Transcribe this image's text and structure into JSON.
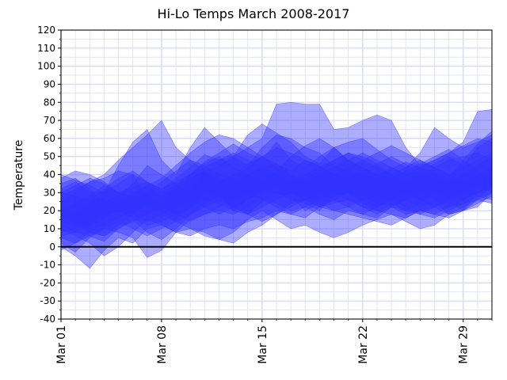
{
  "chart_data": {
    "type": "area",
    "title": "Hi-Lo Temps March 2008-2017",
    "xlabel": "",
    "ylabel": "Temperature",
    "xlim": [
      1,
      31
    ],
    "ylim": [
      -40,
      120
    ],
    "y_ticks": [
      -40,
      -30,
      -20,
      -10,
      0,
      10,
      20,
      30,
      40,
      50,
      60,
      70,
      80,
      90,
      100,
      110,
      120
    ],
    "x_ticks": [
      {
        "day": 1,
        "label": "Mar 01"
      },
      {
        "day": 8,
        "label": "Mar 08"
      },
      {
        "day": 15,
        "label": "Mar 15"
      },
      {
        "day": 22,
        "label": "Mar 22"
      },
      {
        "day": 29,
        "label": "Mar 29"
      }
    ],
    "grid": true,
    "zero_line": true,
    "colors": {
      "fill": "#3333ff",
      "grid": "#dcdcf5",
      "zero_line": "#000000"
    },
    "series": [
      {
        "high": [
          40,
          37,
          34,
          30,
          35,
          40,
          28,
          24,
          33,
          40,
          47,
          52,
          57,
          52,
          48,
          58,
          48,
          44,
          50,
          55,
          48,
          44,
          40,
          43,
          47,
          44,
          41,
          38,
          48,
          57,
          64
        ],
        "low": [
          12,
          8,
          6,
          3,
          10,
          15,
          8,
          4,
          10,
          18,
          24,
          28,
          22,
          18,
          25,
          30,
          28,
          20,
          24,
          28,
          30,
          24,
          20,
          23,
          26,
          22,
          25,
          18,
          20,
          26,
          34
        ]
      },
      {
        "high": [
          30,
          34,
          38,
          35,
          30,
          33,
          36,
          32,
          38,
          44,
          51,
          48,
          50,
          45,
          55,
          62,
          60,
          55,
          52,
          45,
          42,
          40,
          38,
          44,
          40,
          42,
          46,
          50,
          45,
          55,
          60
        ],
        "low": [
          0,
          -5,
          -12,
          -2,
          5,
          2,
          10,
          12,
          8,
          15,
          18,
          20,
          18,
          22,
          26,
          24,
          20,
          22,
          18,
          15,
          20,
          18,
          16,
          22,
          18,
          20,
          22,
          25,
          20,
          30,
          32
        ]
      },
      {
        "high": [
          35,
          38,
          32,
          25,
          28,
          35,
          45,
          40,
          35,
          30,
          42,
          38,
          35,
          40,
          44,
          46,
          40,
          38,
          42,
          48,
          52,
          50,
          46,
          40,
          36,
          40,
          44,
          48,
          50,
          52,
          48
        ],
        "low": [
          10,
          6,
          2,
          -5,
          0,
          8,
          15,
          12,
          8,
          6,
          10,
          12,
          10,
          14,
          16,
          20,
          18,
          16,
          22,
          24,
          26,
          22,
          20,
          18,
          16,
          20,
          18,
          22,
          24,
          26,
          24
        ]
      },
      {
        "high": [
          22,
          18,
          24,
          30,
          45,
          58,
          65,
          48,
          40,
          55,
          66,
          58,
          50,
          62,
          68,
          63,
          58,
          50,
          46,
          55,
          58,
          60,
          54,
          48,
          44,
          52,
          66,
          60,
          55,
          58,
          62
        ],
        "low": [
          5,
          2,
          8,
          6,
          12,
          18,
          24,
          20,
          15,
          22,
          30,
          28,
          20,
          26,
          32,
          30,
          26,
          24,
          20,
          28,
          30,
          28,
          24,
          22,
          20,
          24,
          30,
          28,
          26,
          30,
          32
        ]
      },
      {
        "high": [
          25,
          30,
          36,
          40,
          48,
          55,
          62,
          70,
          55,
          48,
          42,
          45,
          50,
          55,
          60,
          79,
          80,
          79,
          79,
          65,
          66,
          70,
          73,
          70,
          55,
          45,
          48,
          52,
          58,
          75,
          76
        ],
        "low": [
          2,
          -3,
          5,
          10,
          8,
          5,
          -6,
          -2,
          8,
          10,
          6,
          4,
          8,
          15,
          20,
          15,
          10,
          12,
          8,
          5,
          8,
          12,
          15,
          18,
          14,
          10,
          12,
          18,
          20,
          22,
          30
        ]
      },
      {
        "high": [
          38,
          42,
          40,
          36,
          30,
          28,
          34,
          38,
          45,
          52,
          58,
          62,
          60,
          55,
          50,
          46,
          42,
          48,
          45,
          40,
          38,
          42,
          46,
          50,
          46,
          40,
          38,
          36,
          40,
          45,
          50
        ],
        "low": [
          18,
          14,
          10,
          12,
          16,
          20,
          22,
          18,
          14,
          10,
          8,
          4,
          2,
          8,
          12,
          18,
          24,
          26,
          22,
          20,
          18,
          16,
          14,
          12,
          16,
          20,
          18,
          16,
          20,
          24,
          28
        ]
      },
      {
        "high": [
          30,
          28,
          26,
          32,
          38,
          42,
          36,
          30,
          34,
          40,
          46,
          50,
          44,
          40,
          36,
          42,
          50,
          56,
          60,
          55,
          48,
          44,
          40,
          38,
          42,
          46,
          50,
          54,
          48,
          42,
          38
        ],
        "low": [
          8,
          10,
          14,
          18,
          20,
          16,
          12,
          14,
          18,
          22,
          26,
          24,
          20,
          18,
          22,
          26,
          30,
          28,
          24,
          20,
          22,
          26,
          28,
          24,
          20,
          18,
          16,
          20,
          24,
          28,
          26
        ]
      },
      {
        "high": [
          20,
          24,
          28,
          34,
          30,
          26,
          30,
          36,
          42,
          48,
          45,
          40,
          38,
          44,
          50,
          55,
          52,
          48,
          44,
          40,
          44,
          48,
          52,
          56,
          52,
          48,
          44,
          40,
          44,
          48,
          52
        ],
        "low": [
          -2,
          2,
          6,
          10,
          14,
          10,
          6,
          10,
          14,
          18,
          22,
          26,
          22,
          18,
          14,
          18,
          22,
          26,
          30,
          26,
          22,
          18,
          22,
          26,
          22,
          18,
          22,
          26,
          30,
          34,
          30
        ]
      },
      {
        "high": [
          32,
          36,
          30,
          26,
          24,
          30,
          34,
          28,
          32,
          38,
          42,
          36,
          40,
          46,
          50,
          44,
          40,
          36,
          40,
          44,
          48,
          52,
          48,
          44,
          40,
          44,
          48,
          52,
          56,
          60,
          58
        ],
        "low": [
          14,
          12,
          8,
          6,
          10,
          14,
          18,
          22,
          18,
          14,
          18,
          22,
          26,
          30,
          26,
          22,
          18,
          22,
          26,
          30,
          26,
          22,
          18,
          22,
          26,
          30,
          26,
          22,
          26,
          30,
          34
        ]
      },
      {
        "high": [
          28,
          32,
          36,
          38,
          42,
          40,
          36,
          32,
          36,
          40,
          44,
          48,
          52,
          48,
          44,
          40,
          36,
          40,
          44,
          48,
          52,
          48,
          44,
          40,
          44,
          48,
          44,
          40,
          36,
          40,
          44
        ],
        "low": [
          6,
          8,
          12,
          16,
          20,
          18,
          14,
          18,
          22,
          26,
          22,
          18,
          22,
          26,
          30,
          34,
          30,
          26,
          22,
          26,
          30,
          26,
          22,
          26,
          30,
          26,
          22,
          18,
          22,
          26,
          30
        ]
      }
    ]
  }
}
